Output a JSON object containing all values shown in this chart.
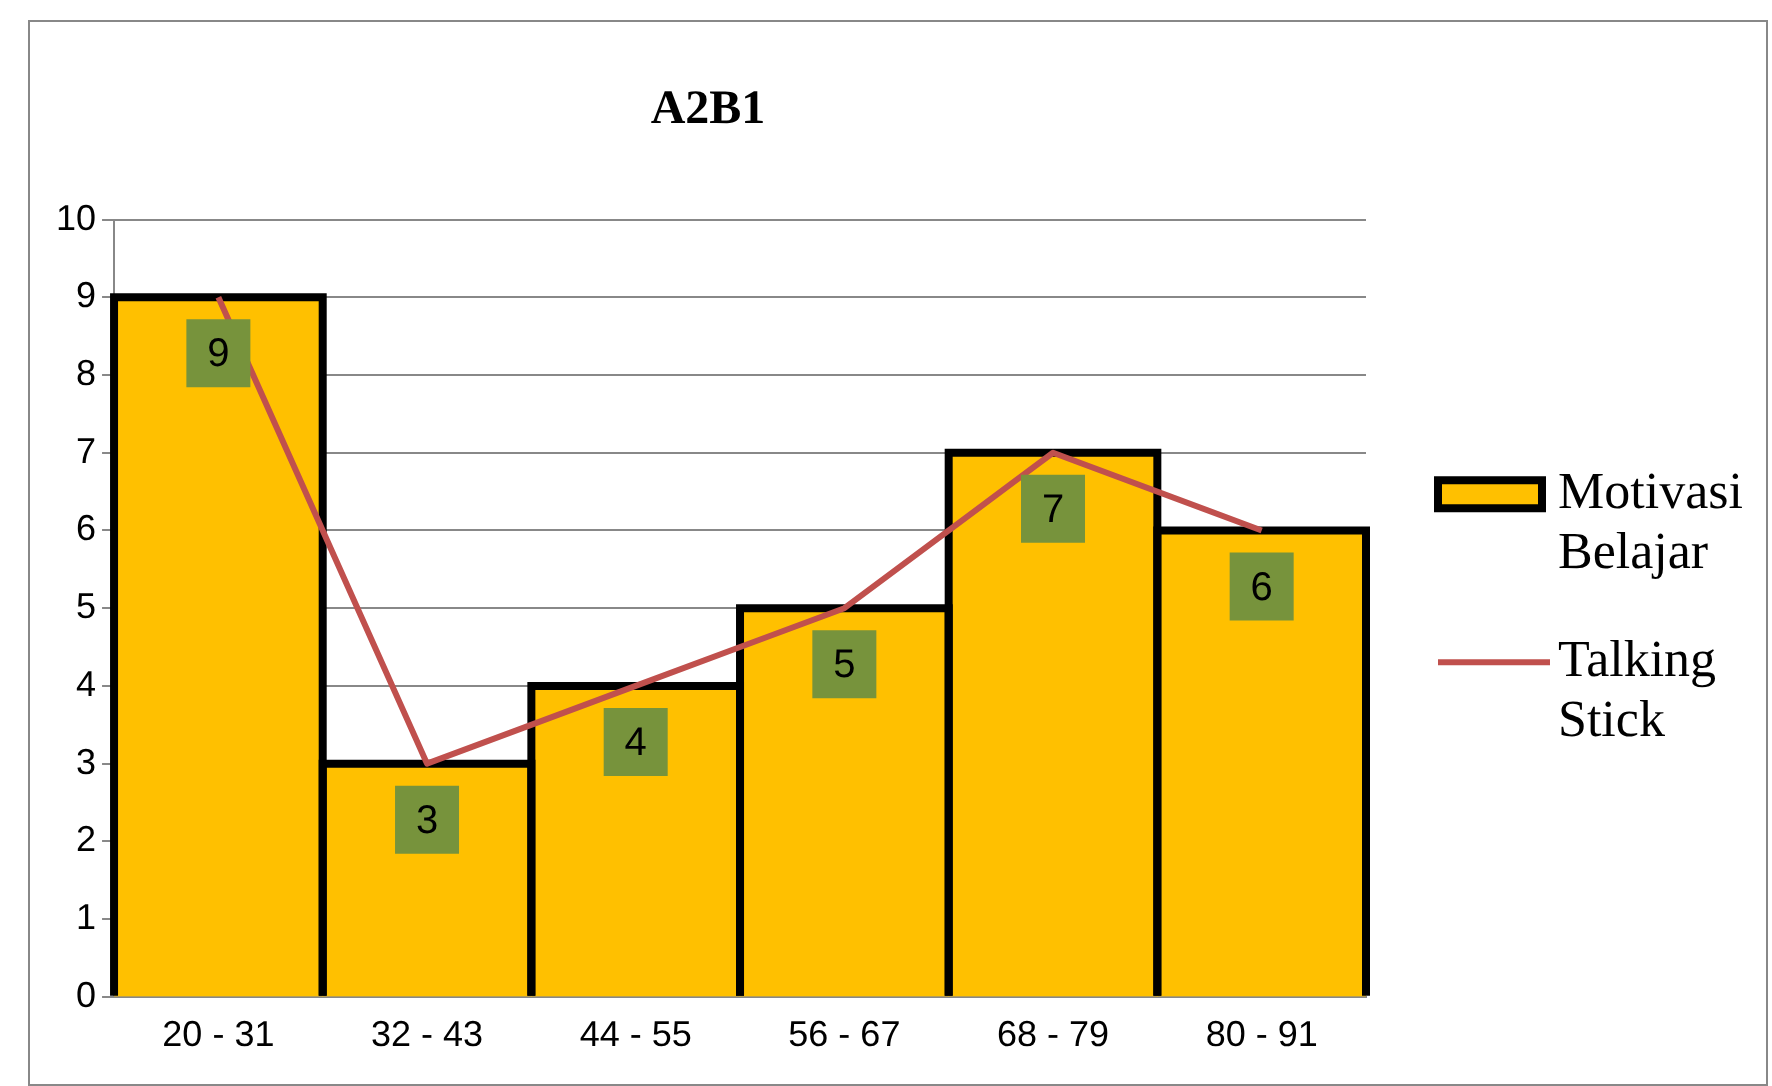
{
  "chart_data": {
    "type": "bar",
    "title": "A2B1",
    "categories": [
      "20 - 31",
      "32 - 43",
      "44 - 55",
      "56 - 67",
      "68 - 79",
      "80 - 91"
    ],
    "series": [
      {
        "name": "Motivasi Belajar",
        "color": "#ffc000",
        "values": [
          9,
          3,
          4,
          5,
          7,
          6
        ],
        "value_labels": [
          "9",
          "3",
          "4",
          "5",
          "7",
          "6"
        ]
      },
      {
        "name": "Talking Stick",
        "type": "line",
        "color": "#c0504d",
        "values": [
          9,
          3,
          4,
          5,
          7,
          6
        ]
      }
    ],
    "ylim": [
      0,
      10
    ],
    "yticks": [
      0,
      1,
      2,
      3,
      4,
      5,
      6,
      7,
      8,
      9,
      10
    ],
    "grid": "y",
    "legend": "right",
    "marker": "none"
  }
}
